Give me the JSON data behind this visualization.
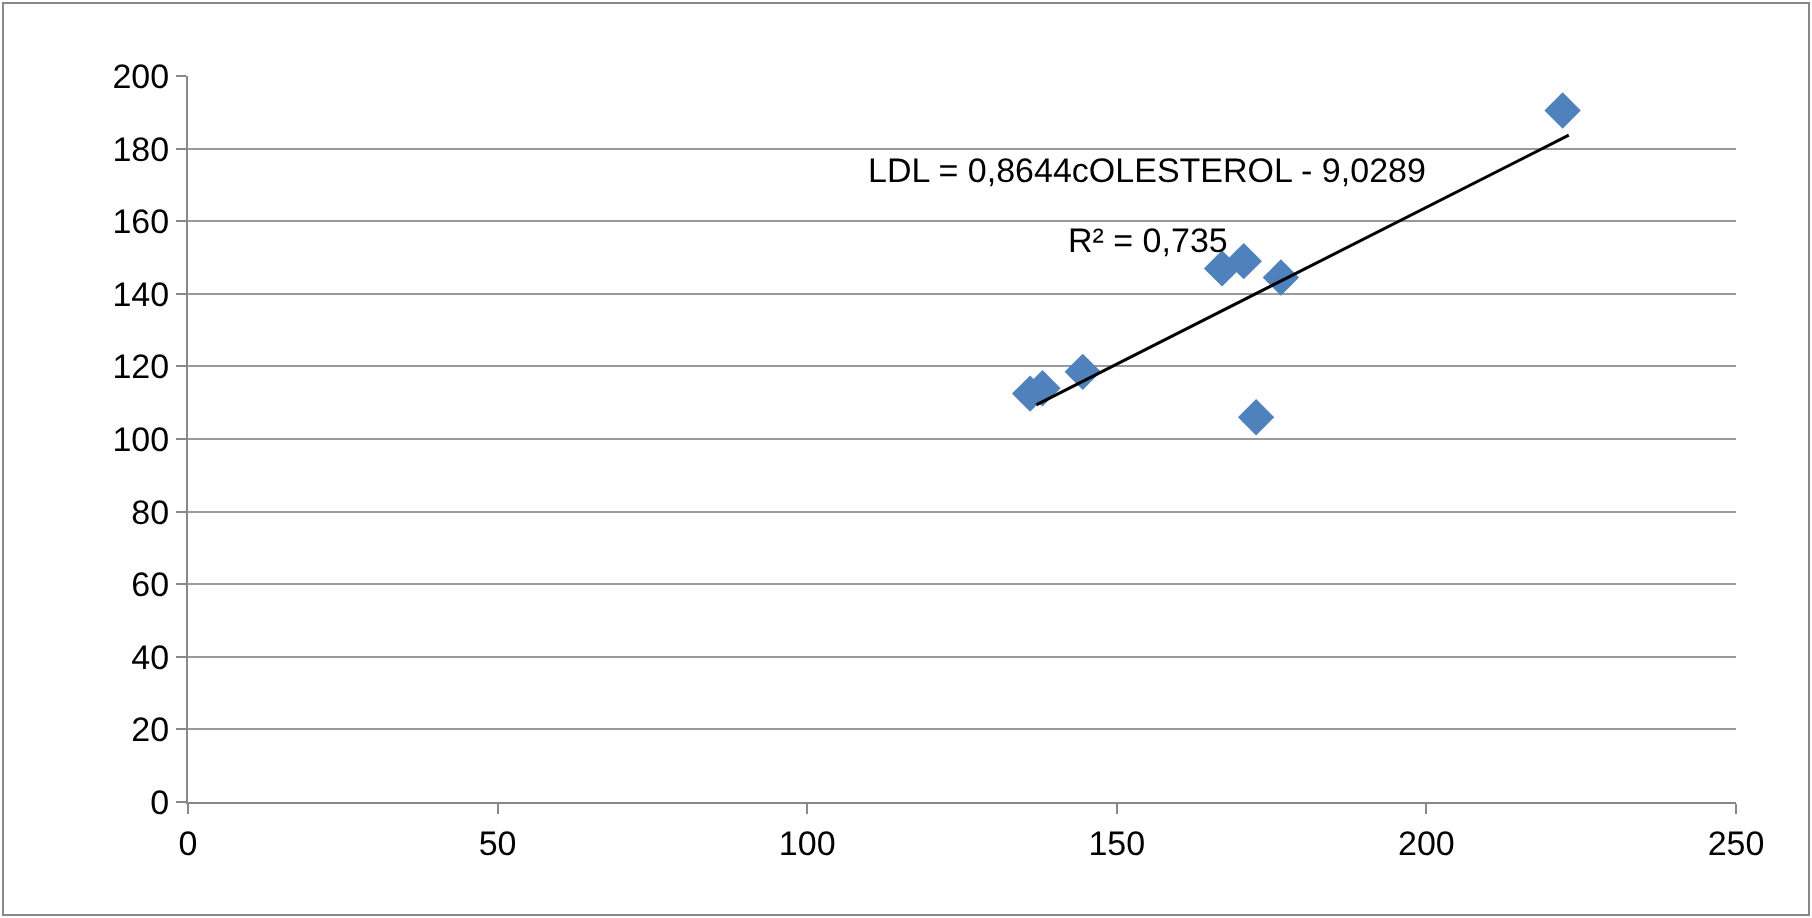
{
  "chart_data": {
    "type": "scatter",
    "marker": "diamond",
    "grid": "y",
    "xlim": [
      0,
      250
    ],
    "xticks": [
      0,
      50,
      100,
      150,
      200,
      250
    ],
    "ylim": [
      0,
      200
    ],
    "yticks": [
      0,
      20,
      40,
      60,
      80,
      100,
      120,
      140,
      160,
      180,
      200
    ],
    "series": [
      {
        "color": "#4f81bd",
        "x": [
          136,
          138,
          144.5,
          167,
          170.5,
          176.5,
          172.5,
          222
        ],
        "values": [
          112.5,
          114,
          118.5,
          147,
          149,
          144.5,
          106,
          190.5
        ]
      },
      {
        "type": "line",
        "color": "#000000",
        "marker": "none",
        "x": [
          137,
          223
        ],
        "values": [
          109.4,
          183.7
        ]
      }
    ],
    "annotations": [
      "LDL = 0,8644cOLESTEROL - 9,0289",
      "R² = 0,735"
    ]
  }
}
